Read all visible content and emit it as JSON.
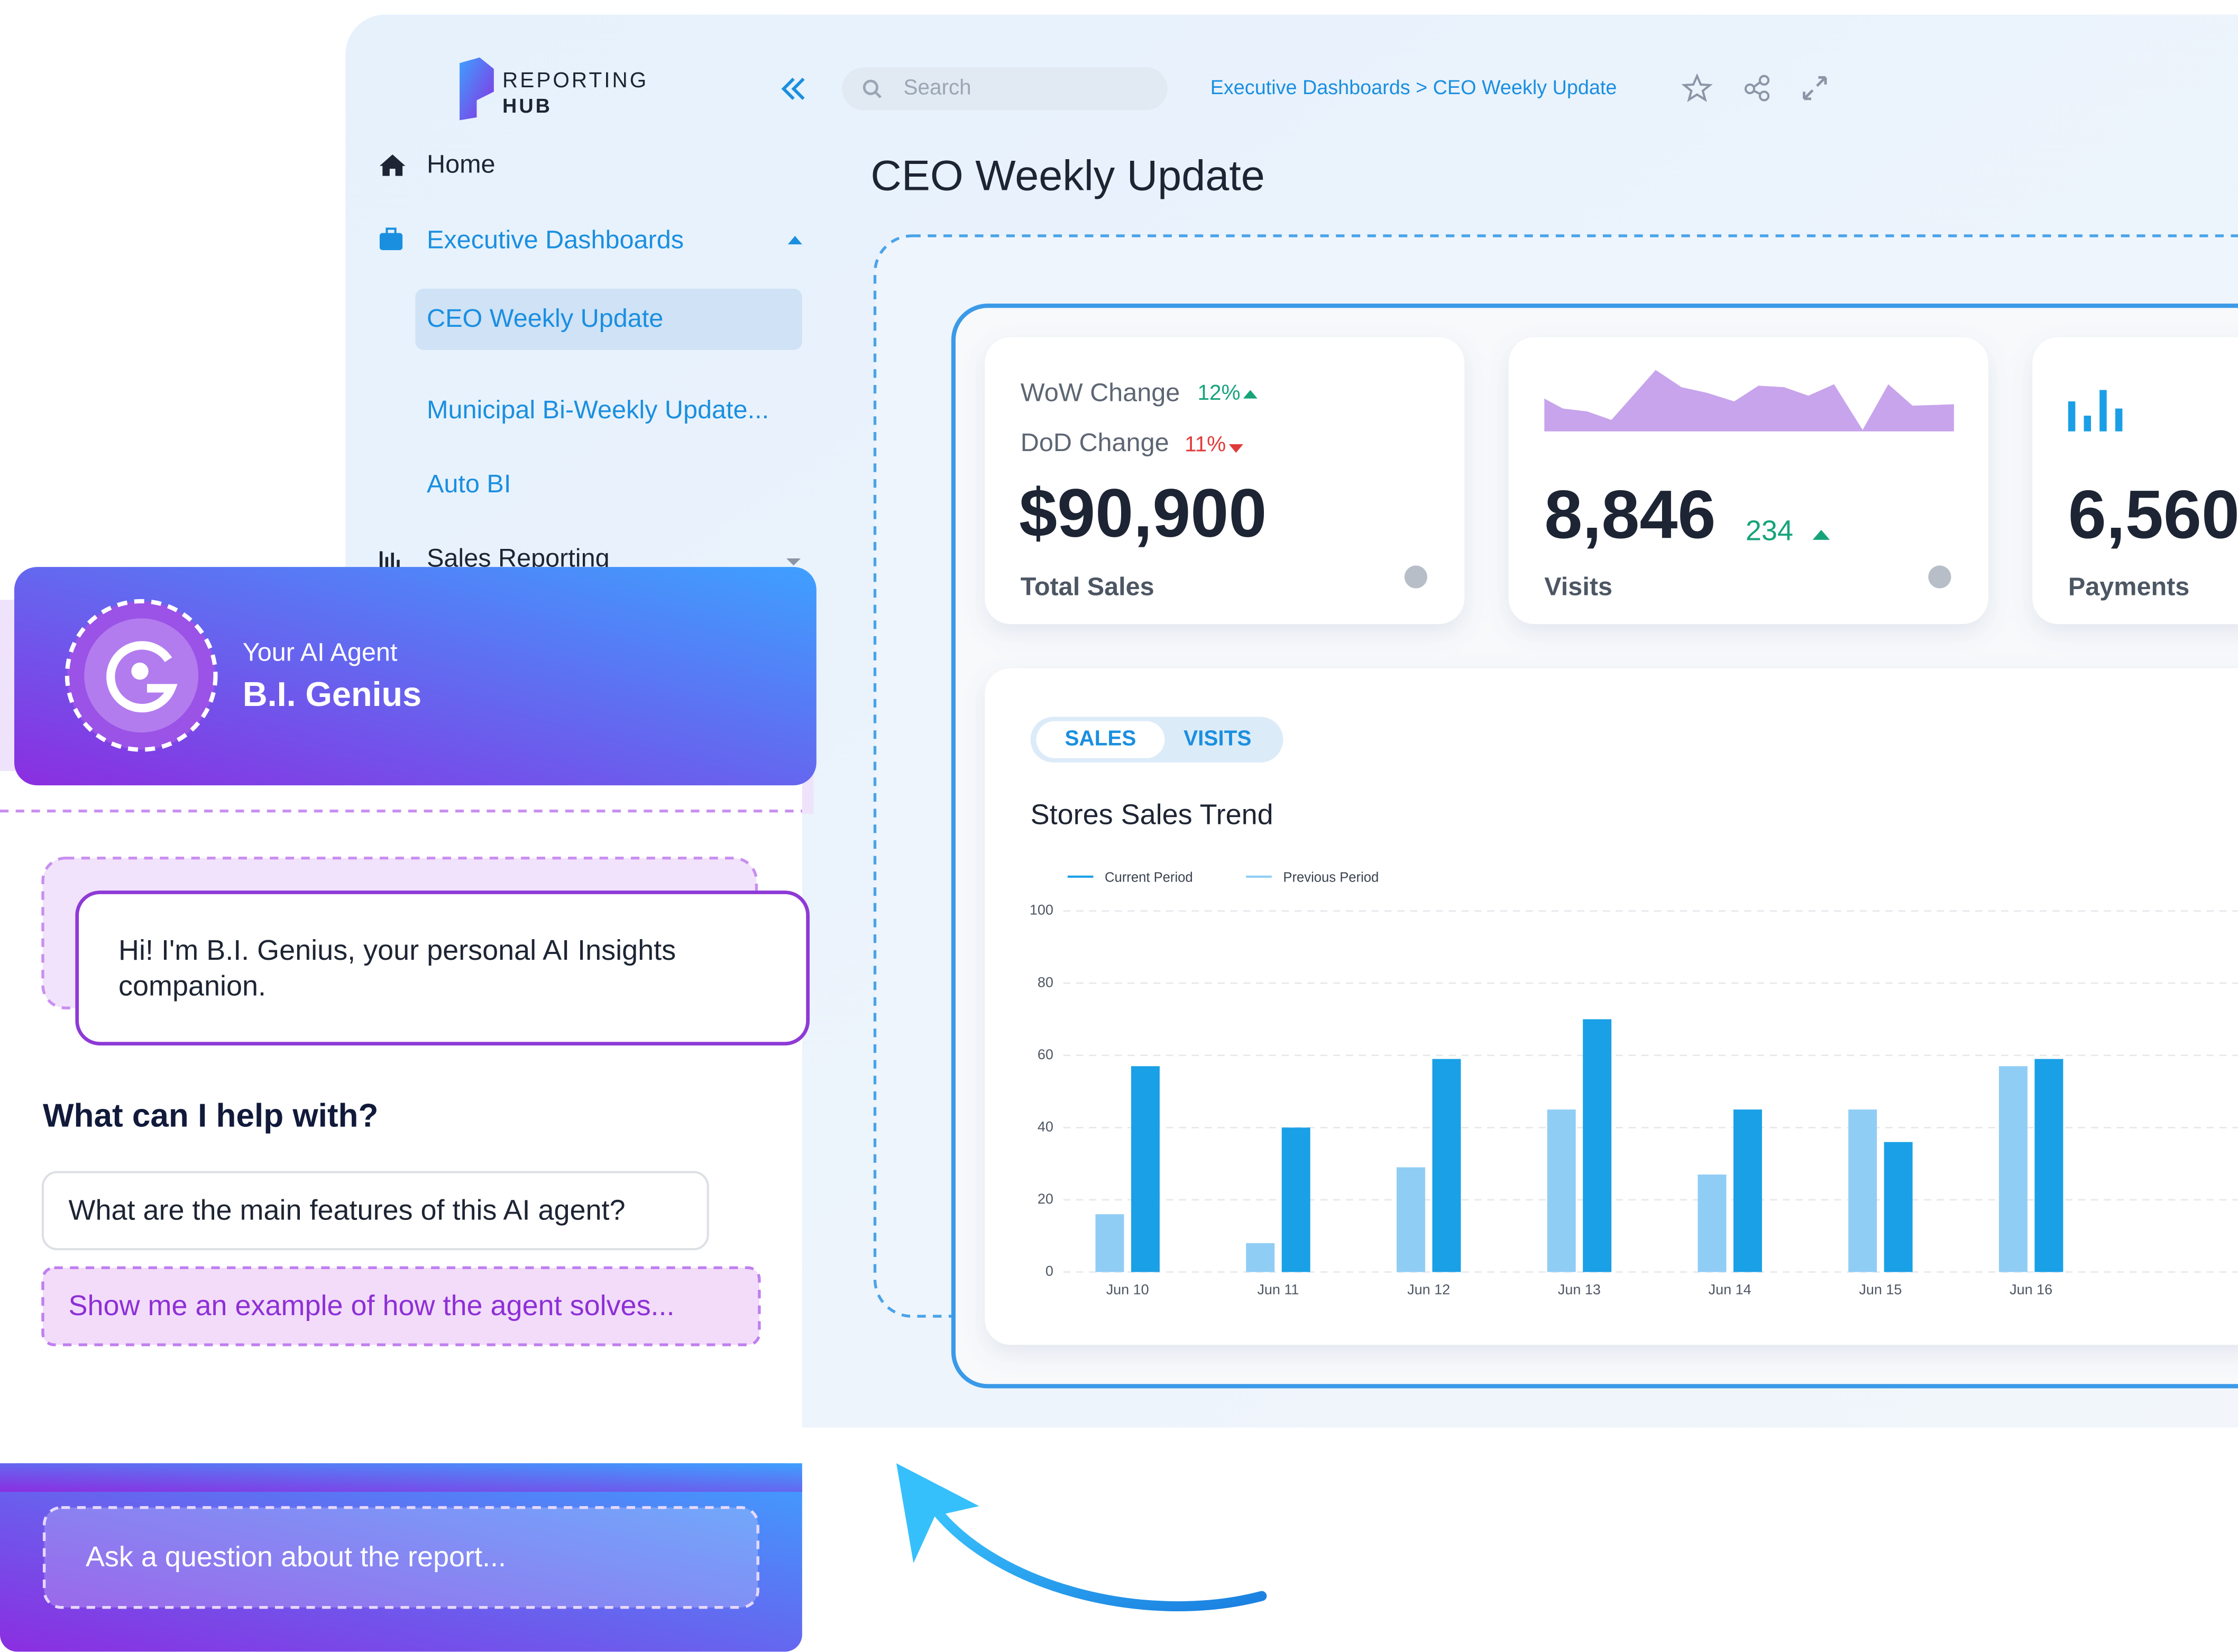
{
  "sidebar": {
    "logo": {
      "line1": "REPORTING",
      "line2": "HUB"
    },
    "items": [
      "Home",
      "Executive Dashboards",
      "CEO Weekly Update",
      "Municipal Bi-Weekly Update...",
      "Auto BI",
      "Sales Reporting"
    ]
  },
  "toolbar": {
    "search": "Search",
    "breadcrumb": "Executive Dashboards > CEO Weekly Update"
  },
  "page_title": "CEO Weekly Update",
  "kpis": {
    "sales": {
      "wow_label": "WoW Change",
      "wow_value": "12%",
      "dod_label": "DoD Change",
      "dod_value": "11%",
      "value": "$90,900",
      "label": "Total Sales"
    },
    "visits": {
      "value": "8,846",
      "delta": "234",
      "label": "Visits"
    },
    "payments": {
      "value": "6,560",
      "label": "Payments"
    }
  },
  "tabs": [
    "SALES",
    "VISITS"
  ],
  "chart_data": {
    "type": "bar",
    "title": "Stores Sales Trend",
    "categories": [
      "Jun 10",
      "Jun 11",
      "Jun 12",
      "Jun 13",
      "Jun 14",
      "Jun 15",
      "Jun 16"
    ],
    "series": [
      {
        "name": "Current Period",
        "color": "#1aa0e6",
        "values": [
          57,
          40,
          59,
          70,
          45,
          36,
          59
        ]
      },
      {
        "name": "Previous Period",
        "color": "#8fcdf5",
        "values": [
          16,
          8,
          29,
          45,
          27,
          45,
          57
        ]
      }
    ],
    "ylim": [
      0,
      100
    ],
    "yticks": [
      0,
      20,
      40,
      60,
      80,
      100
    ],
    "grid": true
  },
  "assistant": {
    "subtitle": "Your AI Agent",
    "name": "B.I. Genius",
    "greeting": [
      "Hi! I'm B.I. Genius, your personal AI Insights",
      "companion."
    ],
    "prompt_heading": "What can I help with?",
    "suggestions": [
      "What are the main features of this AI agent?",
      "Show me an example of how the agent solves..."
    ],
    "input_placeholder": "Ask a question about the report..."
  }
}
